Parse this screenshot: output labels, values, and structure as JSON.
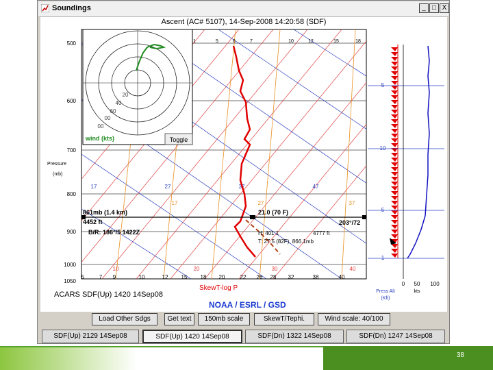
{
  "window": {
    "title": "Soundings",
    "minimize_label": "_",
    "maximize_label": "□",
    "close_label": "X"
  },
  "chart": {
    "title": "Ascent (AC# 5107), 14-Sep-2008 14:20:58 (SDF)",
    "pressure_label_line1": "Pressure",
    "pressure_label_line2": "(mb)",
    "pressure_ticks": [
      "500",
      "600",
      "700",
      "800",
      "900",
      "1000",
      "1050"
    ],
    "top_temp_ticks": [
      "1",
      "5",
      "6",
      "7",
      "10",
      "12",
      "15",
      "18"
    ],
    "mid_temp_ticks": [
      "17",
      "27",
      "37",
      "47"
    ],
    "mid_temp_ticks_2": [
      "17",
      "27",
      "37"
    ],
    "bottom_temp_ticks": [
      "5",
      "7",
      "9",
      "10",
      "12",
      "15",
      "18",
      "20",
      "22",
      "26",
      "28",
      "32",
      "38",
      "40"
    ],
    "red_temp_labels": [
      "10",
      "20",
      "30",
      "40"
    ],
    "hodograph": {
      "ring_labels": [
        "20",
        "40",
        "60",
        "00",
        "00"
      ],
      "wind_label": "wind (kts)",
      "toggle_label": "Toggle"
    },
    "annotations": {
      "left_line1": "861mb (1.4 km)",
      "left_line2": "4452 ft",
      "left_line3": "B/R: 186°/5 1422Z",
      "temp_label": "21.0 (70 F)",
      "wind_dir_label": "203°/72",
      "info_line1": "H: 401 1",
      "info_line1b": "4777 ft",
      "info_line2": "T: 27.5 (82F), 866.1mb"
    },
    "skewt_label": "SkewT-log P",
    "source_label": "ACARS SDF(Up) 1420 14Sep08",
    "noaa_label": "NOAA / ESRL / GSD",
    "alt_ticks": [
      "5",
      "10",
      "5",
      "1"
    ],
    "speed_axis": {
      "ticks": [
        "0",
        "50",
        "100"
      ],
      "unit": "kts",
      "press_alt_label_line1": "Press Alt",
      "press_alt_label_line2": "(Kft)"
    }
  },
  "buttons": [
    {
      "label": "Load Other Sdgs"
    },
    {
      "label": "Get text"
    },
    {
      "label": "150mb scale"
    },
    {
      "label": "SkewT/Tephi."
    },
    {
      "label": "Wind scale: 40/100"
    }
  ],
  "tabs": [
    {
      "label": "SDF(Up) 2129 14Sep08"
    },
    {
      "label": "SDF(Up) 1420 14Sep08"
    },
    {
      "label": "SDF(Dn) 1322 14Sep08"
    },
    {
      "label": "SDF(Dn) 1247 14Sep08"
    }
  ],
  "footer": {
    "page_number": "38"
  },
  "colors": {
    "temperature": "#e00000",
    "isotherm_red": "#e04040",
    "isotherm_blue": "#2a3fc0",
    "adiabat_orange": "#e89020",
    "hodograph_green": "#1f8a1f",
    "footer_green": "#4a8f1f"
  }
}
